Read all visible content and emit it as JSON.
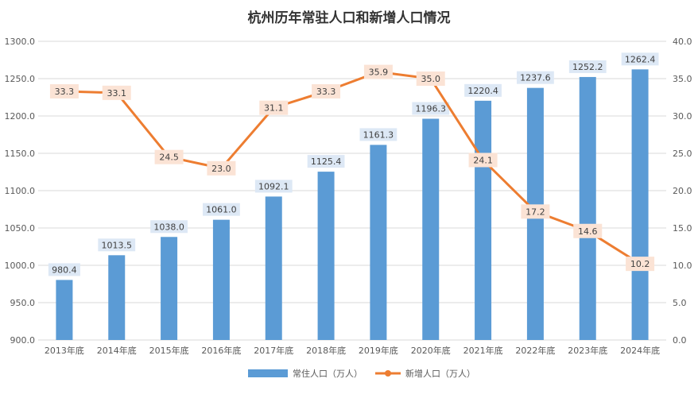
{
  "chart_data": {
    "type": "bar",
    "title": "杭州历年常驻人口和新增人口情况",
    "categories": [
      "2013年底",
      "2014年底",
      "2015年底",
      "2016年底",
      "2017年底",
      "2018年底",
      "2019年底",
      "2020年底",
      "2021年底",
      "2022年底",
      "2023年底",
      "2024年底"
    ],
    "series": [
      {
        "name": "常住人口（万人）",
        "type": "bar",
        "axis": "left",
        "color": "#5b9bd5",
        "values": [
          980.4,
          1013.5,
          1038.0,
          1061.0,
          1092.1,
          1125.4,
          1161.3,
          1196.3,
          1220.4,
          1237.6,
          1252.2,
          1262.4
        ]
      },
      {
        "name": "新增人口（万人）",
        "type": "line",
        "axis": "right",
        "color": "#ed7d31",
        "values": [
          33.3,
          33.1,
          24.5,
          23.0,
          31.1,
          33.3,
          35.9,
          35.0,
          24.1,
          17.2,
          14.6,
          10.2
        ]
      }
    ],
    "y_left": {
      "ylim": [
        900,
        1300
      ],
      "ticks": [
        "900.0",
        "950.0",
        "1000.0",
        "1050.0",
        "1100.0",
        "1150.0",
        "1200.0",
        "1250.0",
        "1300.0"
      ]
    },
    "y_right": {
      "ylim": [
        0,
        40
      ],
      "ticks": [
        "0.0",
        "5.0",
        "10.0",
        "15.0",
        "20.0",
        "25.0",
        "30.0",
        "35.0",
        "40.0"
      ]
    },
    "grid": true,
    "legend_position": "bottom"
  }
}
